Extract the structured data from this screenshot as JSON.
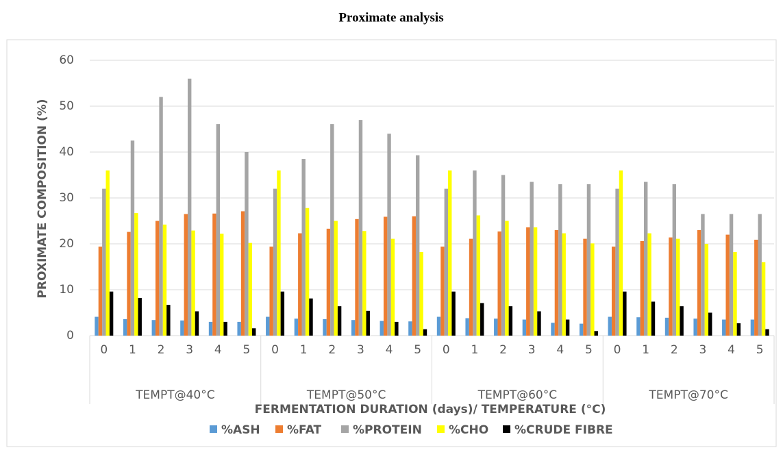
{
  "chart_data": {
    "type": "bar",
    "title": "Proximate analysis",
    "y_label": "PROXIMATE COMPOSITION (%)",
    "x_label": "FERMENTATION DURATION (days)/ TEMPERATURE (°C)",
    "category_groups": [
      "TEMPT@40°C",
      "TEMPT@50°C",
      "TEMPT@60°C",
      "TEMPT@70°C"
    ],
    "categories": [
      "0",
      "1",
      "2",
      "3",
      "4",
      "5",
      "0",
      "1",
      "2",
      "3",
      "4",
      "5",
      "0",
      "1",
      "2",
      "3",
      "4",
      "5",
      "0",
      "1",
      "2",
      "3",
      "4",
      "5"
    ],
    "series": [
      {
        "name": "%ASH",
        "color": "#5b9bd5",
        "values": [
          4.1,
          3.6,
          3.4,
          3.3,
          3.0,
          3.0,
          4.1,
          3.7,
          3.6,
          3.4,
          3.2,
          3.1,
          4.1,
          3.8,
          3.7,
          3.5,
          2.8,
          2.6,
          4.1,
          4.0,
          3.9,
          3.7,
          3.5,
          3.5
        ]
      },
      {
        "name": "%FAT",
        "color": "#ed7d31",
        "values": [
          19.4,
          22.6,
          25.0,
          26.5,
          26.6,
          27.1,
          19.4,
          22.3,
          23.3,
          25.4,
          25.9,
          26.0,
          19.4,
          21.1,
          22.7,
          23.6,
          23.0,
          21.1,
          19.4,
          20.6,
          21.4,
          23.0,
          22.0,
          20.9
        ]
      },
      {
        "name": "%PROTEIN",
        "color": "#a5a5a5",
        "values": [
          32,
          42.5,
          52,
          56,
          46.1,
          40,
          32,
          38.5,
          46.1,
          47,
          44,
          39.3,
          32,
          36,
          35,
          33.5,
          33,
          33,
          32,
          33.5,
          33,
          26.5,
          26.5,
          26.5
        ]
      },
      {
        "name": "%CHO",
        "color": "#ffff00",
        "values": [
          36,
          26.7,
          24.2,
          22.9,
          22.2,
          20.2,
          36,
          27.8,
          25,
          22.8,
          21.1,
          18.2,
          36,
          26.2,
          25,
          23.6,
          22.3,
          20.1,
          36,
          22.3,
          21.1,
          20.0,
          18.2,
          16.0
        ]
      },
      {
        "name": "%CRUDE FIBRE",
        "color": "#000000",
        "values": [
          9.6,
          8.2,
          6.7,
          5.3,
          3.0,
          1.6,
          9.6,
          8.1,
          6.4,
          5.4,
          3.0,
          1.4,
          9.6,
          7.1,
          6.4,
          5.3,
          3.5,
          1.0,
          9.6,
          7.4,
          6.4,
          5.0,
          2.7,
          1.4
        ]
      }
    ],
    "ylim": [
      0,
      60
    ],
    "yticks": [
      0,
      10,
      20,
      30,
      40,
      50,
      60
    ],
    "grid": true,
    "legend": "bottom"
  }
}
